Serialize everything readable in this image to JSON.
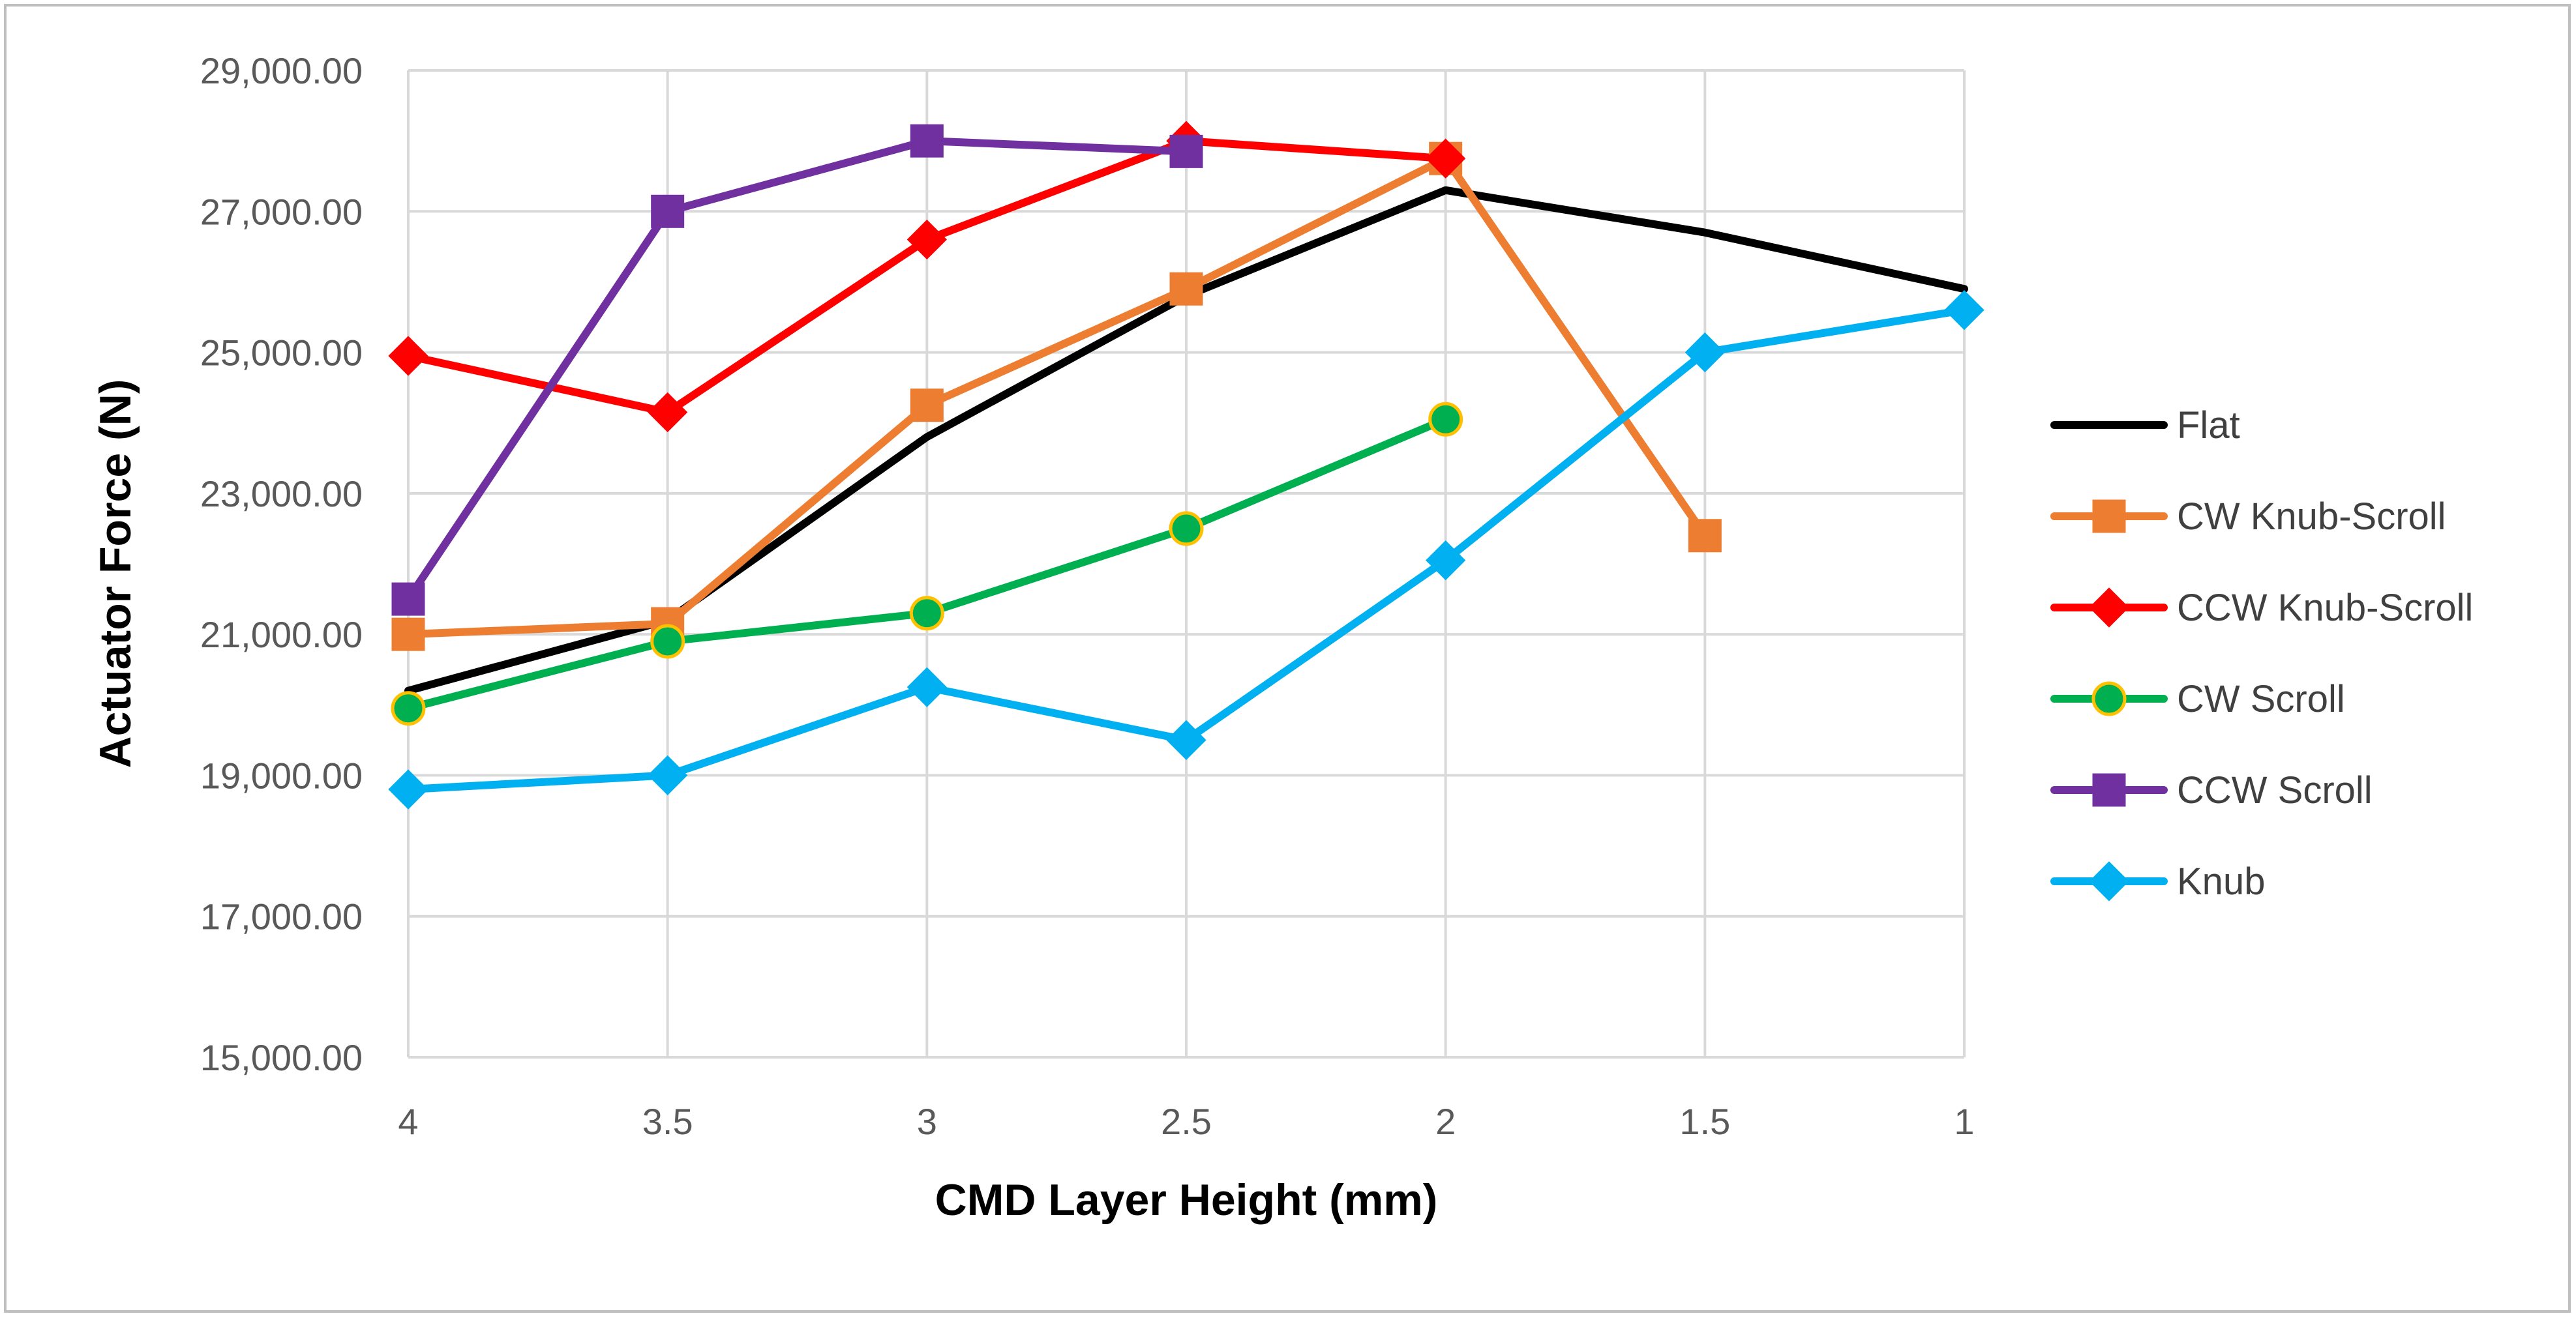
{
  "chart_data": {
    "type": "line",
    "title": "",
    "xlabel": "CMD Layer Height (mm)",
    "ylabel": "Actuator Force (N)",
    "categories": [
      "4",
      "3.5",
      "3",
      "2.5",
      "2",
      "1.5",
      "1"
    ],
    "ylim": [
      15000,
      29000
    ],
    "yticks": [
      15000,
      17000,
      19000,
      21000,
      23000,
      25000,
      27000,
      29000
    ],
    "ytick_labels": [
      "15,000.00",
      "17,000.00",
      "19,000.00",
      "21,000.00",
      "23,000.00",
      "25,000.00",
      "27,000.00",
      "29,000.00"
    ],
    "grid": true,
    "legend_position": "right",
    "series": [
      {
        "name": "Flat",
        "color": "#000000",
        "marker": "none",
        "marker_color": "#000000",
        "marker_edge": "#000000",
        "values": [
          20200,
          21200,
          23800,
          25800,
          27300,
          26700,
          25900
        ]
      },
      {
        "name": "CW Knub-Scroll",
        "color": "#ED7D31",
        "marker": "square",
        "marker_color": "#ED7D31",
        "marker_edge": "#ED7D31",
        "values": [
          21000,
          21150,
          24250,
          25900,
          27750,
          22400,
          null
        ]
      },
      {
        "name": "CCW Knub-Scroll",
        "color": "#FF0000",
        "marker": "diamond",
        "marker_color": "#FF0000",
        "marker_edge": "#FF0000",
        "values": [
          24950,
          24150,
          26600,
          28000,
          27750,
          null,
          null
        ]
      },
      {
        "name": "CW Scroll",
        "color": "#00B050",
        "marker": "circle",
        "marker_color": "#00B050",
        "marker_edge": "#FFC000",
        "values": [
          19950,
          20900,
          21300,
          22500,
          24050,
          null,
          null
        ]
      },
      {
        "name": "CCW Scroll",
        "color": "#7030A0",
        "marker": "square",
        "marker_color": "#7030A0",
        "marker_edge": "#7030A0",
        "values": [
          21500,
          27000,
          28000,
          27850,
          null,
          null,
          null
        ]
      },
      {
        "name": "Knub",
        "color": "#00B0F0",
        "marker": "diamond",
        "marker_color": "#00B0F0",
        "marker_edge": "#00B0F0",
        "values": [
          18800,
          19000,
          20250,
          19500,
          22050,
          25000,
          25600
        ]
      }
    ]
  }
}
